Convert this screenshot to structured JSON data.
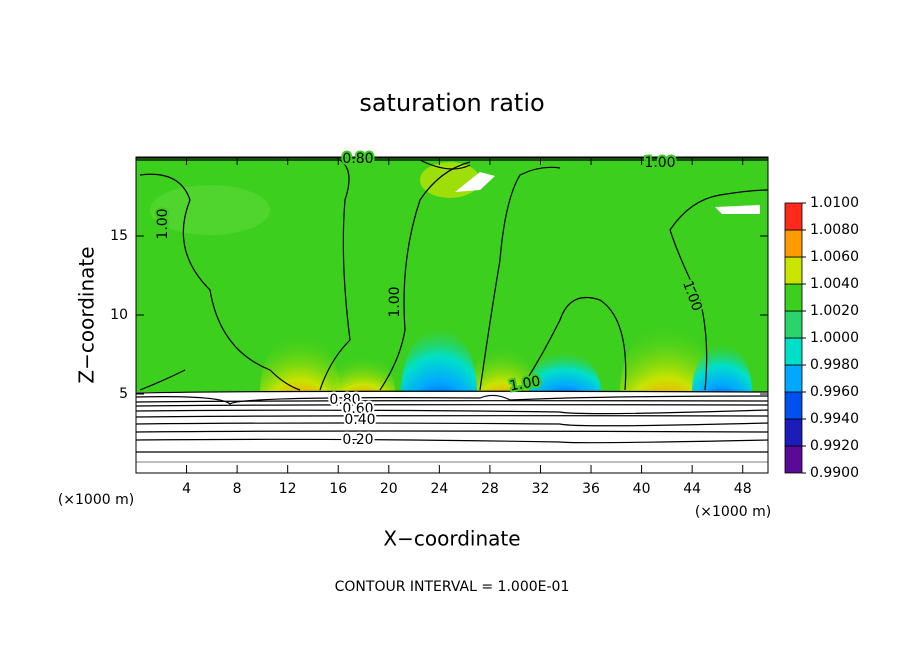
{
  "chart_data": {
    "type": "contour",
    "title": "saturation ratio",
    "x_label": "X−coordinate",
    "y_label": "Z−coordinate",
    "x_unit": "(×1000 m)",
    "footer": "CONTOUR INTERVAL = 1.000E-01",
    "xlim": [
      0,
      50
    ],
    "xticks": [
      4,
      8,
      12,
      16,
      20,
      24,
      28,
      32,
      36,
      40,
      44,
      48
    ],
    "ylim": [
      0,
      20
    ],
    "yticks": [
      5,
      10,
      15
    ],
    "colorbar_lim": [
      0.99,
      1.01
    ],
    "colorbar_ticks": [
      {
        "value": 0.99,
        "label": "0.9900"
      },
      {
        "value": 0.992,
        "label": "0.9920"
      },
      {
        "value": 0.994,
        "label": "0.9940"
      },
      {
        "value": 0.996,
        "label": "0.9960"
      },
      {
        "value": 0.998,
        "label": "0.9980"
      },
      {
        "value": 1.0,
        "label": "1.0000"
      },
      {
        "value": 1.002,
        "label": "1.0020"
      },
      {
        "value": 1.004,
        "label": "1.0040"
      },
      {
        "value": 1.006,
        "label": "1.0060"
      },
      {
        "value": 1.008,
        "label": "1.0080"
      },
      {
        "value": 1.01,
        "label": "1.0100"
      }
    ],
    "colorbar_colors": [
      "#5a0a96",
      "#1c1cb8",
      "#0050f0",
      "#00a8ff",
      "#00e0c8",
      "#2ad46a",
      "#3ccf1e",
      "#c8e400",
      "#ff9a00",
      "#ff2a1a"
    ],
    "contour_labels": [
      "0.80",
      "1.00",
      "1.00",
      "1.00",
      "1.00",
      "1.00",
      "0.80",
      "0.60",
      "0.40",
      "0.20"
    ]
  }
}
